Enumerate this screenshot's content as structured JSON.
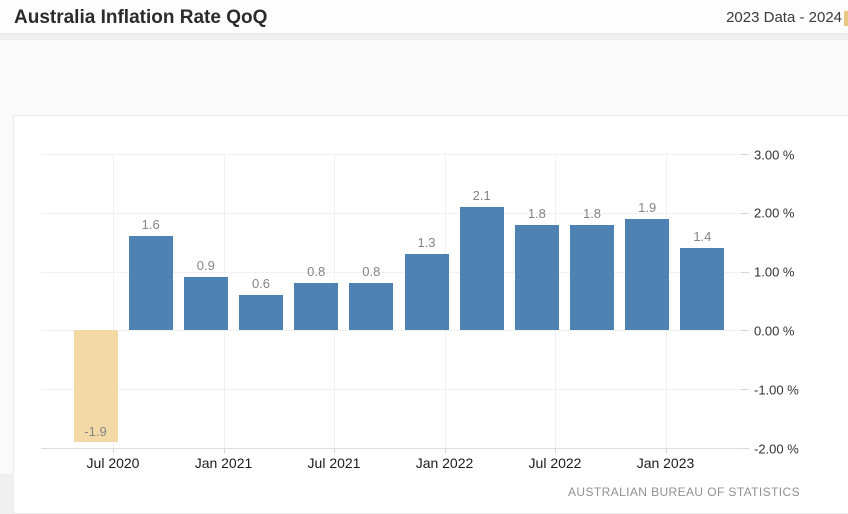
{
  "header": {
    "title": "Australia Inflation Rate QoQ",
    "subtitle": "2023 Data - 2024",
    "clipped_accent_color": "#ebc882"
  },
  "chart_data": {
    "type": "bar",
    "title": "Australia Inflation Rate QoQ",
    "values": [
      -1.9,
      1.6,
      0.9,
      0.6,
      0.8,
      0.8,
      1.3,
      2.1,
      1.8,
      1.8,
      1.9,
      1.4
    ],
    "value_labels": [
      "-1.9",
      "1.6",
      "0.9",
      "0.6",
      "0.8",
      "0.8",
      "1.3",
      "2.1",
      "1.8",
      "1.8",
      "1.9",
      "1.4"
    ],
    "x_tick_labels": [
      "Jul 2020",
      "Jan 2021",
      "Jul 2021",
      "Jan 2022",
      "Jul 2022",
      "Jan 2023"
    ],
    "y_tick_labels": [
      "3.00 %",
      "2.00 %",
      "1.00 %",
      "0.00 %",
      "-1.00 %",
      "-2.00 %"
    ],
    "y_tick_values": [
      3,
      2,
      1,
      0,
      -1,
      -2
    ],
    "ylim": [
      -2.0,
      3.0
    ],
    "unit": "%",
    "grid": true,
    "legend": false,
    "colors": {
      "positive_bar": "#4d82b2",
      "negative_bar": "#f2d9a6",
      "value_label": "#848484",
      "grid": "#f1f1f1",
      "axis_line": "#dcdcdc",
      "tick": "#d5d5d5"
    },
    "source": "AUSTRALIAN BUREAU OF STATISTICS"
  },
  "footer": {
    "attribution": "AUSTRALIAN BUREAU OF STATISTICS"
  }
}
